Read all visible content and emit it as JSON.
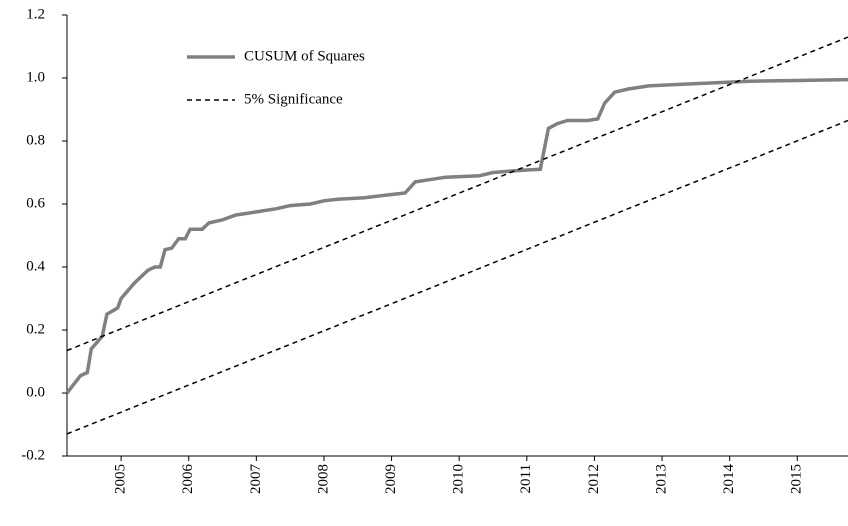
{
  "chart_data": {
    "type": "line",
    "xlim": [
      2004.2,
      2015.75
    ],
    "xticks": [
      2005,
      2006,
      2007,
      2008,
      2009,
      2010,
      2011,
      2012,
      2013,
      2014,
      2015
    ],
    "ylim": [
      -0.2,
      1.2
    ],
    "yticks": [
      {
        "value": -0.2,
        "label": "-0.2"
      },
      {
        "value": 0,
        "label": "0.0"
      },
      {
        "value": 0.2,
        "label": "0.2"
      },
      {
        "value": 0.4,
        "label": "0.4"
      },
      {
        "value": 0.6,
        "label": "0.6"
      },
      {
        "value": 0.8,
        "label": "0.8"
      },
      {
        "value": 1,
        "label": "1.0"
      },
      {
        "value": 1.2,
        "label": "1.2"
      }
    ],
    "legend": "upper left",
    "series": [
      {
        "name": "CUSUM of Squares",
        "color": "#808080",
        "style": "solid",
        "x": [
          2004.2,
          2004.4,
          2004.5,
          2004.56,
          2004.72,
          2004.79,
          2004.95,
          2005.0,
          2005.2,
          2005.4,
          2005.5,
          2005.58,
          2005.65,
          2005.75,
          2005.85,
          2005.95,
          2006.02,
          2006.2,
          2006.3,
          2006.5,
          2006.7,
          2007.0,
          2007.3,
          2007.5,
          2007.8,
          2008.0,
          2008.2,
          2008.6,
          2009.0,
          2009.2,
          2009.35,
          2009.8,
          2010.3,
          2010.5,
          2010.8,
          2011.0,
          2011.2,
          2011.32,
          2011.45,
          2011.6,
          2011.9,
          2012.05,
          2012.15,
          2012.3,
          2012.5,
          2012.8,
          2013.3,
          2013.8,
          2014.3,
          2015.0,
          2015.75
        ],
        "values": [
          0.0,
          0.055,
          0.065,
          0.14,
          0.18,
          0.25,
          0.27,
          0.3,
          0.35,
          0.39,
          0.4,
          0.4,
          0.455,
          0.46,
          0.49,
          0.49,
          0.52,
          0.52,
          0.54,
          0.55,
          0.565,
          0.575,
          0.585,
          0.595,
          0.6,
          0.61,
          0.615,
          0.62,
          0.63,
          0.635,
          0.67,
          0.685,
          0.69,
          0.7,
          0.705,
          0.708,
          0.71,
          0.84,
          0.855,
          0.865,
          0.865,
          0.87,
          0.92,
          0.955,
          0.965,
          0.975,
          0.98,
          0.985,
          0.99,
          0.992,
          0.995
        ]
      },
      {
        "name": "5% Significance",
        "color": "#000000",
        "style": "dashed",
        "x": [
          2004.2,
          2015.75
        ],
        "values": [
          0.135,
          1.13
        ]
      },
      {
        "color": "#000000",
        "style": "dashed",
        "x": [
          2004.2,
          2015.75
        ],
        "values": [
          -0.13,
          0.865
        ]
      }
    ]
  }
}
